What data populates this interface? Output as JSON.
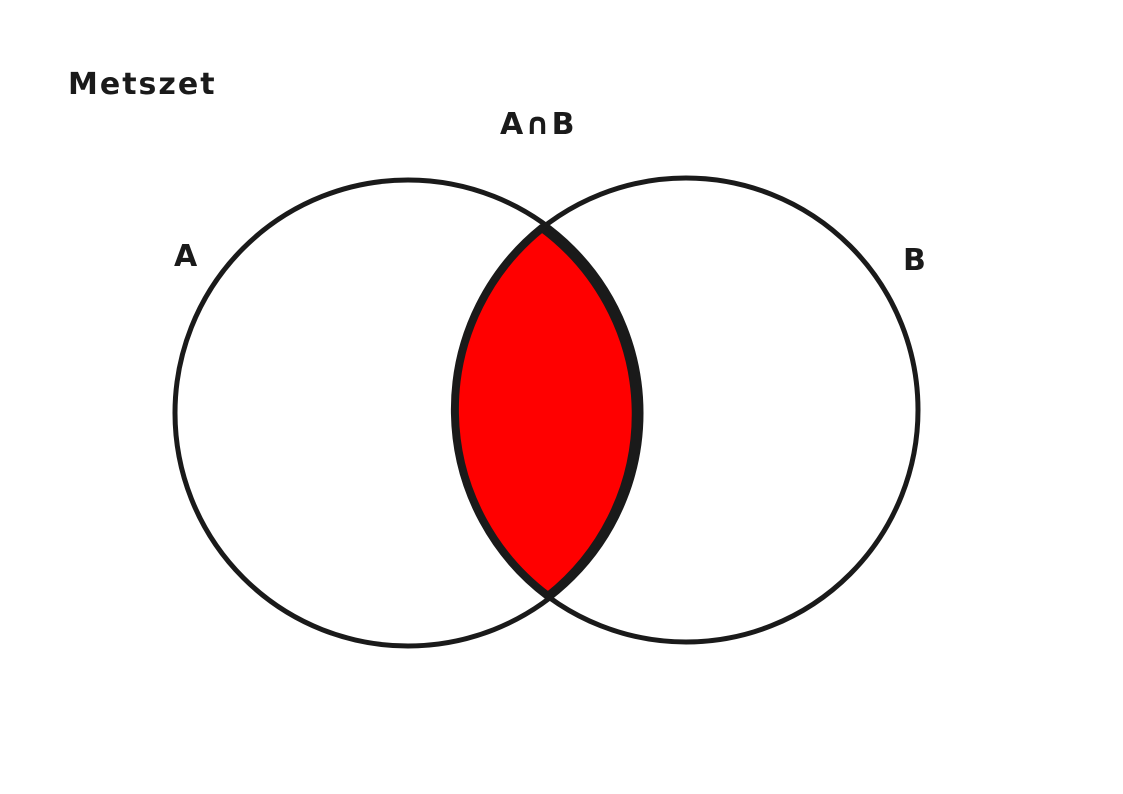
{
  "title": "Metszet",
  "intersection_label": "A∩B",
  "set_a_label": "A",
  "set_b_label": "B",
  "colors": {
    "intersection_fill": "#ff0000",
    "stroke": "#1a1a1a",
    "background": "#ffffff",
    "text": "#1a1a1a"
  }
}
